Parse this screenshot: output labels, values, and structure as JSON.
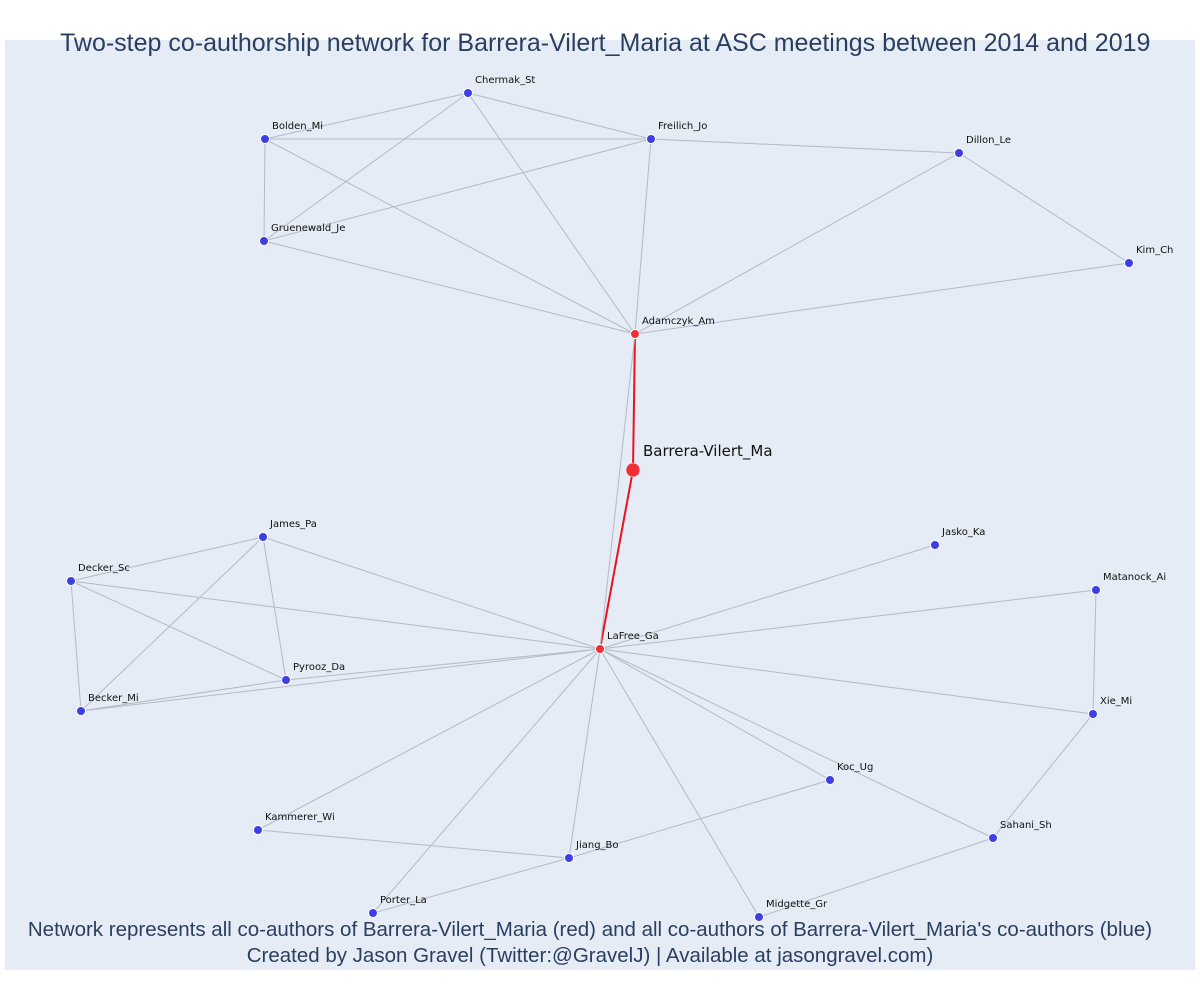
{
  "title": "Two-step co-authorship network for Barrera-Vilert_Maria at ASC meetings between 2014 and 2019",
  "footer": {
    "line1": "Network represents all co-authors of Barrera-Vilert_Maria (red) and all co-authors of Barrera-Vilert_Maria's co-authors (blue)",
    "line2": "Created by Jason Gravel (Twitter:@GravelJ) | Available at jasongravel.com)"
  },
  "colors": {
    "background": "#e5ecf6",
    "edge": "#b4b9c6",
    "focal_edge": "#e8141c",
    "red_node": "#ef2f35",
    "blue_node": "#3d3ee6",
    "text": "#2a3f5f"
  },
  "nodes": [
    {
      "id": "Barrera-Vilert_Ma",
      "group": "focal"
    },
    {
      "id": "Adamczyk_Am",
      "group": "red"
    },
    {
      "id": "LaFree_Ga",
      "group": "red"
    },
    {
      "id": "Chermak_St",
      "group": "blue"
    },
    {
      "id": "Bolden_Mi",
      "group": "blue"
    },
    {
      "id": "Freilich_Jo",
      "group": "blue"
    },
    {
      "id": "Dillon_Le",
      "group": "blue"
    },
    {
      "id": "Gruenewald_Je",
      "group": "blue"
    },
    {
      "id": "Kim_Ch",
      "group": "blue"
    },
    {
      "id": "James_Pa",
      "group": "blue"
    },
    {
      "id": "Decker_Sc",
      "group": "blue"
    },
    {
      "id": "Jasko_Ka",
      "group": "blue"
    },
    {
      "id": "Matanock_Ai",
      "group": "blue"
    },
    {
      "id": "Pyrooz_Da",
      "group": "blue"
    },
    {
      "id": "Becker_Mi",
      "group": "blue"
    },
    {
      "id": "Xie_Mi",
      "group": "blue"
    },
    {
      "id": "Koc_Ug",
      "group": "blue"
    },
    {
      "id": "Kammerer_Wi",
      "group": "blue"
    },
    {
      "id": "Sahani_Sh",
      "group": "blue"
    },
    {
      "id": "Jiang_Bo",
      "group": "blue"
    },
    {
      "id": "Porter_La",
      "group": "blue"
    },
    {
      "id": "Midgette_Gr",
      "group": "blue"
    }
  ],
  "edges": [
    [
      "Barrera-Vilert_Ma",
      "Adamczyk_Am"
    ],
    [
      "Barrera-Vilert_Ma",
      "LaFree_Ga"
    ],
    [
      "Adamczyk_Am",
      "LaFree_Ga"
    ],
    [
      "Adamczyk_Am",
      "Chermak_St"
    ],
    [
      "Adamczyk_Am",
      "Bolden_Mi"
    ],
    [
      "Adamczyk_Am",
      "Freilich_Jo"
    ],
    [
      "Adamczyk_Am",
      "Dillon_Le"
    ],
    [
      "Adamczyk_Am",
      "Gruenewald_Je"
    ],
    [
      "Adamczyk_Am",
      "Kim_Ch"
    ],
    [
      "Chermak_St",
      "Bolden_Mi"
    ],
    [
      "Chermak_St",
      "Freilich_Jo"
    ],
    [
      "Chermak_St",
      "Gruenewald_Je"
    ],
    [
      "Bolden_Mi",
      "Freilich_Jo"
    ],
    [
      "Bolden_Mi",
      "Gruenewald_Je"
    ],
    [
      "Freilich_Jo",
      "Dillon_Le"
    ],
    [
      "Freilich_Jo",
      "Gruenewald_Je"
    ],
    [
      "Dillon_Le",
      "Kim_Ch"
    ],
    [
      "LaFree_Ga",
      "James_Pa"
    ],
    [
      "LaFree_Ga",
      "Decker_Sc"
    ],
    [
      "LaFree_Ga",
      "Pyrooz_Da"
    ],
    [
      "LaFree_Ga",
      "Becker_Mi"
    ],
    [
      "LaFree_Ga",
      "Jasko_Ka"
    ],
    [
      "LaFree_Ga",
      "Matanock_Ai"
    ],
    [
      "LaFree_Ga",
      "Xie_Mi"
    ],
    [
      "LaFree_Ga",
      "Koc_Ug"
    ],
    [
      "LaFree_Ga",
      "Sahani_Sh"
    ],
    [
      "LaFree_Ga",
      "Kammerer_Wi"
    ],
    [
      "LaFree_Ga",
      "Jiang_Bo"
    ],
    [
      "LaFree_Ga",
      "Porter_La"
    ],
    [
      "LaFree_Ga",
      "Midgette_Gr"
    ],
    [
      "James_Pa",
      "Decker_Sc"
    ],
    [
      "James_Pa",
      "Pyrooz_Da"
    ],
    [
      "James_Pa",
      "Becker_Mi"
    ],
    [
      "Decker_Sc",
      "Pyrooz_Da"
    ],
    [
      "Decker_Sc",
      "Becker_Mi"
    ],
    [
      "Becker_Mi",
      "Pyrooz_Da"
    ],
    [
      "Matanock_Ai",
      "Xie_Mi"
    ],
    [
      "Xie_Mi",
      "Sahani_Sh"
    ],
    [
      "Koc_Ug",
      "Jiang_Bo"
    ],
    [
      "Kammerer_Wi",
      "Jiang_Bo"
    ],
    [
      "Jiang_Bo",
      "Porter_La"
    ],
    [
      "Sahani_Sh",
      "Midgette_Gr"
    ]
  ]
}
